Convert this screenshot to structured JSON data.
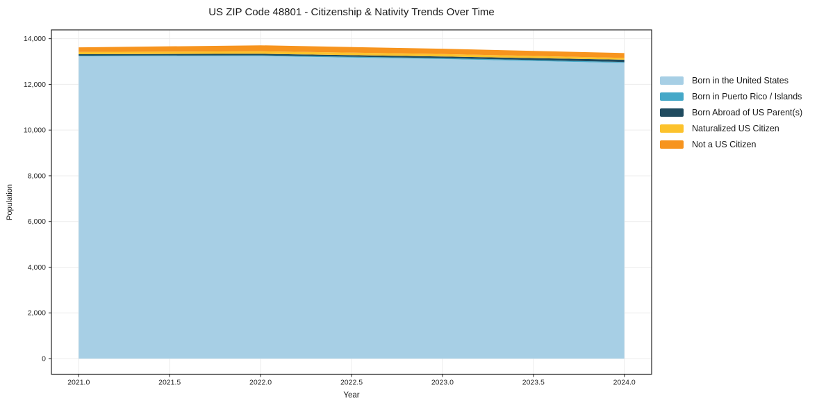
{
  "chart_data": {
    "type": "area",
    "stacked": true,
    "title": "US ZIP Code 48801 - Citizenship & Nativity Trends Over Time",
    "xlabel": "Year",
    "ylabel": "Population",
    "x": [
      2021,
      2022,
      2023,
      2024
    ],
    "series": [
      {
        "name": "Born in the United States",
        "color": "#a7cfe5",
        "values": [
          13230,
          13240,
          13110,
          12940
        ]
      },
      {
        "name": "Born in Puerto Rico / Islands",
        "color": "#45a8c8",
        "values": [
          30,
          30,
          40,
          40
        ]
      },
      {
        "name": "Born Abroad of US Parent(s)",
        "color": "#1f4b5f",
        "values": [
          60,
          70,
          70,
          100
        ]
      },
      {
        "name": "Naturalized US Citizen",
        "color": "#fcc22c",
        "values": [
          100,
          110,
          110,
          80
        ]
      },
      {
        "name": "Not a US Citizen",
        "color": "#f7941e",
        "values": [
          200,
          260,
          230,
          210
        ]
      }
    ],
    "x_tick_values": [
      2021.0,
      2021.5,
      2022.0,
      2022.5,
      2023.0,
      2023.5,
      2024.0
    ],
    "x_tick_labels": [
      "2021.0",
      "2021.5",
      "2022.0",
      "2022.5",
      "2023.0",
      "2023.5",
      "2024.0"
    ],
    "y_tick_values": [
      0,
      2000,
      4000,
      6000,
      8000,
      10000,
      12000,
      14000
    ],
    "y_tick_labels": [
      "0",
      "2,000",
      "4,000",
      "6,000",
      "8,000",
      "10,000",
      "12,000",
      "14,000"
    ],
    "xlim": [
      2020.85,
      2024.15
    ],
    "ylim": [
      -685,
      14385
    ],
    "grid": true,
    "grid_color": "#ececec",
    "spine_color": "#222222",
    "tick_color": "#222222",
    "tick_label_color": "#262626",
    "background_color": "#ffffff",
    "legend_position": "right-outside"
  }
}
